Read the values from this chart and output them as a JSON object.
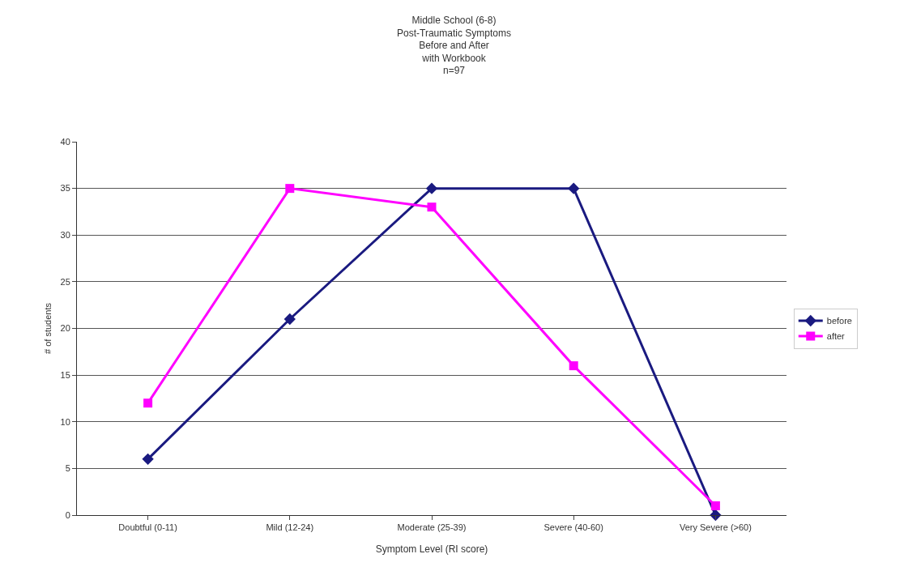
{
  "chart_data": {
    "type": "line",
    "title": "Middle School (6-8)\nPost-Traumatic Symptoms\nBefore and After\nwith Workbook\nn=97",
    "xlabel": "Symptom Level (RI score)",
    "ylabel": "# of students",
    "categories": [
      "Doubtful (0-11)",
      "Mild (12-24)",
      "Moderate (25-39)",
      "Severe (40-60)",
      "Very Severe (>60)"
    ],
    "series": [
      {
        "name": "before",
        "color": "#1a1a80",
        "marker": "diamond",
        "values": [
          6,
          21,
          35,
          35,
          0
        ]
      },
      {
        "name": "after",
        "color": "#ff00ff",
        "marker": "square",
        "values": [
          12,
          35,
          33,
          16,
          1
        ]
      }
    ],
    "ylim": [
      0,
      40
    ],
    "yticks": [
      0,
      5,
      10,
      15,
      20,
      25,
      30,
      35,
      40
    ],
    "grid": "y",
    "legend": "right",
    "line_style": "solid"
  }
}
